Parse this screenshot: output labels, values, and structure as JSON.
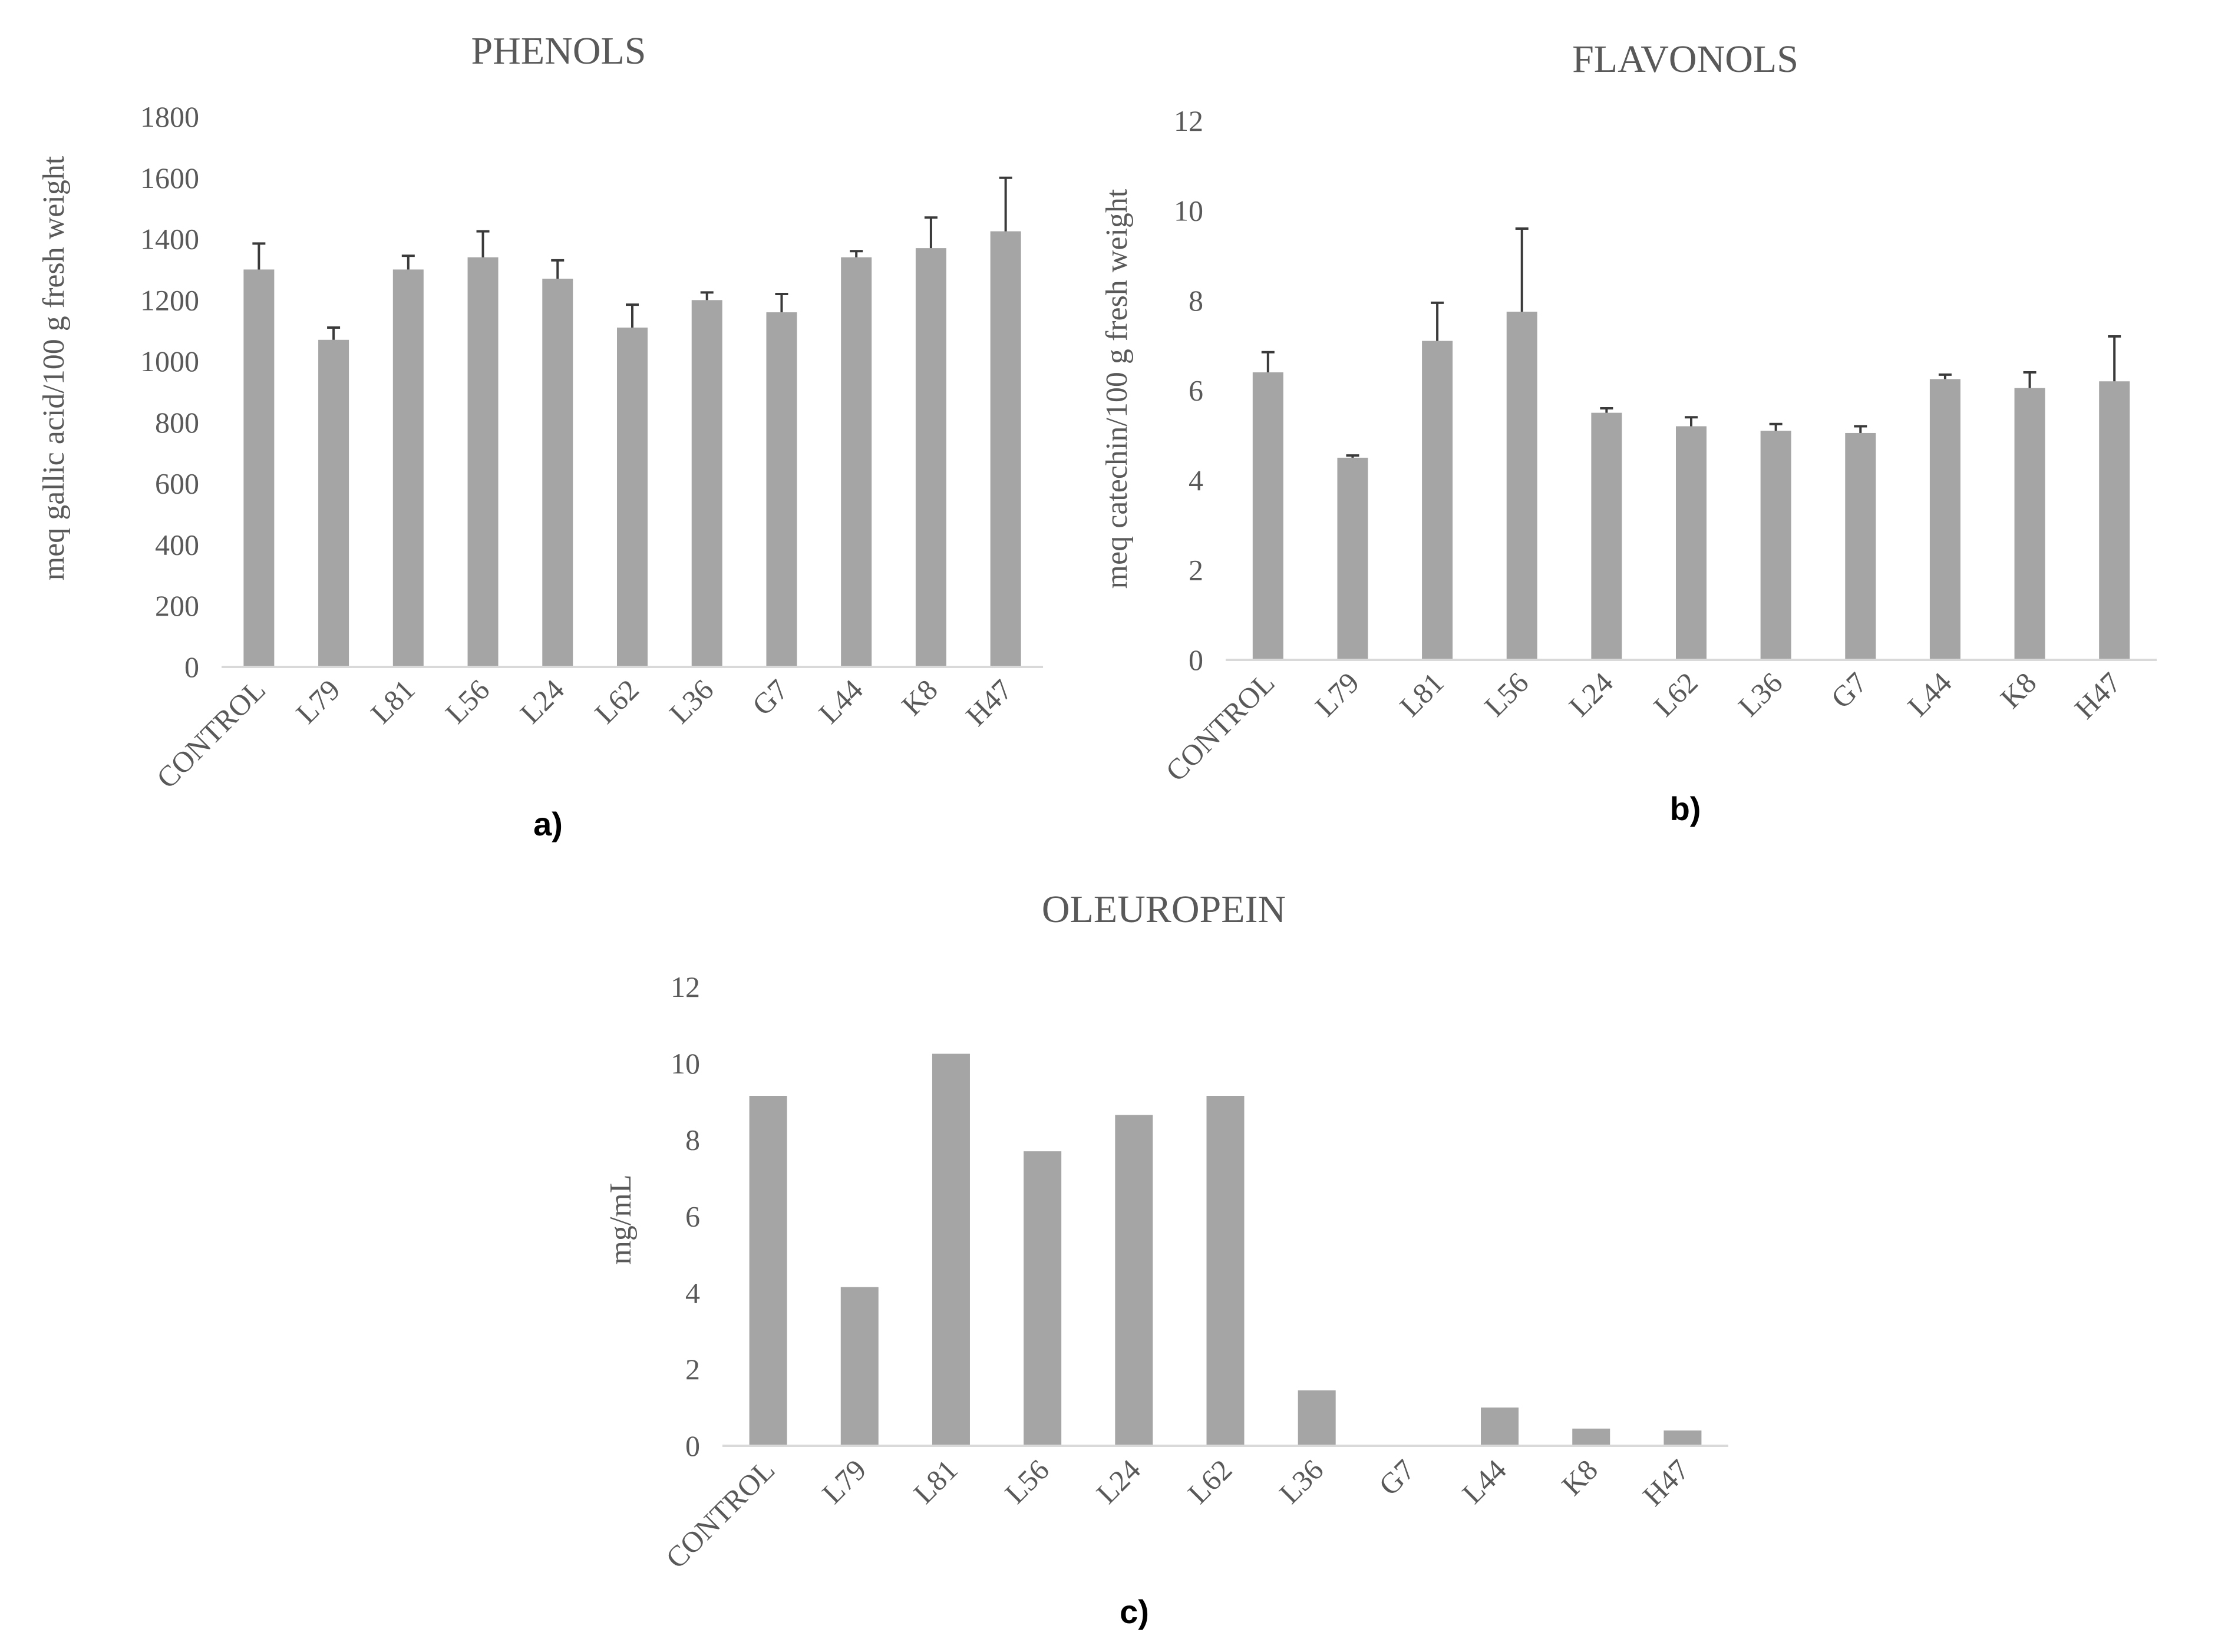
{
  "chart_data": [
    {
      "type": "bar",
      "title": "PHENOLS",
      "ylabel": "meq gallic acid/100 g fresh weight",
      "xlabel": "",
      "panel_label": "a)",
      "categories": [
        "CONTROL",
        "L79",
        "L81",
        "L56",
        "L24",
        "L62",
        "L36",
        "G7",
        "L44",
        "K8",
        "H47"
      ],
      "values": [
        1300,
        1070,
        1300,
        1340,
        1270,
        1110,
        1200,
        1160,
        1340,
        1370,
        1425
      ],
      "errors": [
        85,
        40,
        45,
        85,
        60,
        75,
        25,
        60,
        20,
        100,
        175
      ],
      "ylim": [
        0,
        1800
      ],
      "yticks": [
        0,
        200,
        400,
        600,
        800,
        1000,
        1200,
        1400,
        1600,
        1800
      ],
      "bar_color": "#a5a5a5",
      "grid": false
    },
    {
      "type": "bar",
      "title": "FLAVONOLS",
      "ylabel": "meq catechin/100 g fresh weight",
      "xlabel": "",
      "panel_label": "b)",
      "categories": [
        "CONTROL",
        "L79",
        "L81",
        "L56",
        "L24",
        "L62",
        "L36",
        "G7",
        "L44",
        "K8",
        "H47"
      ],
      "values": [
        6.4,
        4.5,
        7.1,
        7.75,
        5.5,
        5.2,
        5.1,
        5.05,
        6.25,
        6.05,
        6.2
      ],
      "errors": [
        0.45,
        0.05,
        0.85,
        1.85,
        0.1,
        0.2,
        0.15,
        0.15,
        0.1,
        0.35,
        1.0
      ],
      "ylim": [
        0,
        12
      ],
      "yticks": [
        0,
        2,
        4,
        6,
        8,
        10,
        12
      ],
      "bar_color": "#a5a5a5",
      "grid": false
    },
    {
      "type": "bar",
      "title": "OLEUROPEIN",
      "ylabel": "mg/mL",
      "xlabel": "",
      "panel_label": "c)",
      "categories": [
        "CONTROL",
        "L79",
        "L81",
        "L56",
        "L24",
        "L62",
        "L36",
        "G7",
        "L44",
        "K8",
        "H47"
      ],
      "values": [
        9.15,
        4.15,
        10.25,
        7.7,
        8.65,
        9.15,
        1.45,
        0,
        1.0,
        0.45,
        0.4
      ],
      "ylim": [
        0,
        12
      ],
      "yticks": [
        0,
        2,
        4,
        6,
        8,
        10,
        12
      ],
      "bar_color": "#a5a5a5",
      "grid": false
    }
  ]
}
